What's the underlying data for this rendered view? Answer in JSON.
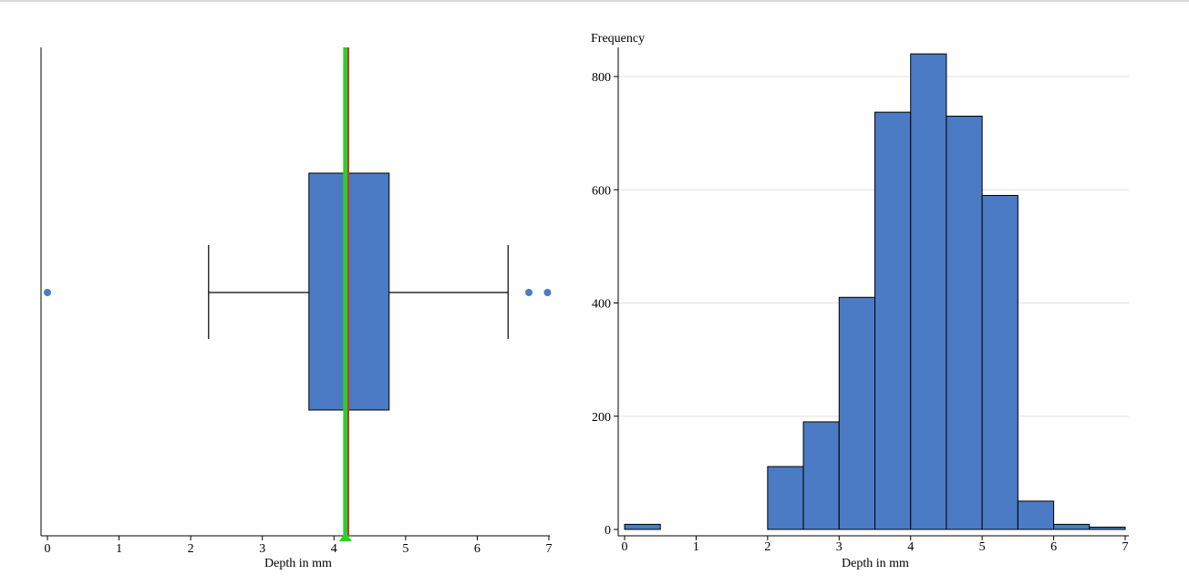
{
  "colors": {
    "box_fill": "#4a7bc4",
    "box_stroke": "#000000",
    "outlier": "#4a7bc4",
    "mean_line": "#2bd12b",
    "median_line": "#c0392b",
    "bar_fill": "#4a7bc4",
    "bar_stroke": "#000000",
    "grid": "#e0e0e0"
  },
  "chart_data": [
    {
      "type": "box",
      "xlabel": "Depth in mm",
      "x_ticks": [
        "0",
        "1",
        "2",
        "3",
        "4",
        "5",
        "6",
        "7"
      ],
      "xlim": [
        0,
        7
      ],
      "grid": false,
      "whisker_low": 2.25,
      "q1": 3.65,
      "median": 4.2,
      "mean": 4.16,
      "q3": 4.77,
      "whisker_high": 6.43,
      "outliers": [
        0,
        6.72,
        6.98
      ]
    },
    {
      "type": "bar",
      "ylabel": "Frequency",
      "xlabel": "Depth in mm",
      "x_ticks": [
        "0",
        "1",
        "2",
        "3",
        "4",
        "5",
        "6",
        "7"
      ],
      "y_ticks": [
        "0",
        "200",
        "400",
        "600",
        "800"
      ],
      "xlim": [
        0,
        7
      ],
      "ylim": [
        0,
        850
      ],
      "grid": true,
      "bin_width": 0.5,
      "bin_starts": [
        0,
        2,
        2.5,
        3,
        3.5,
        4,
        4.5,
        5,
        5.5,
        6,
        6.5
      ],
      "values": [
        9,
        111,
        190,
        410,
        737,
        840,
        730,
        590,
        50,
        9,
        4
      ]
    }
  ]
}
